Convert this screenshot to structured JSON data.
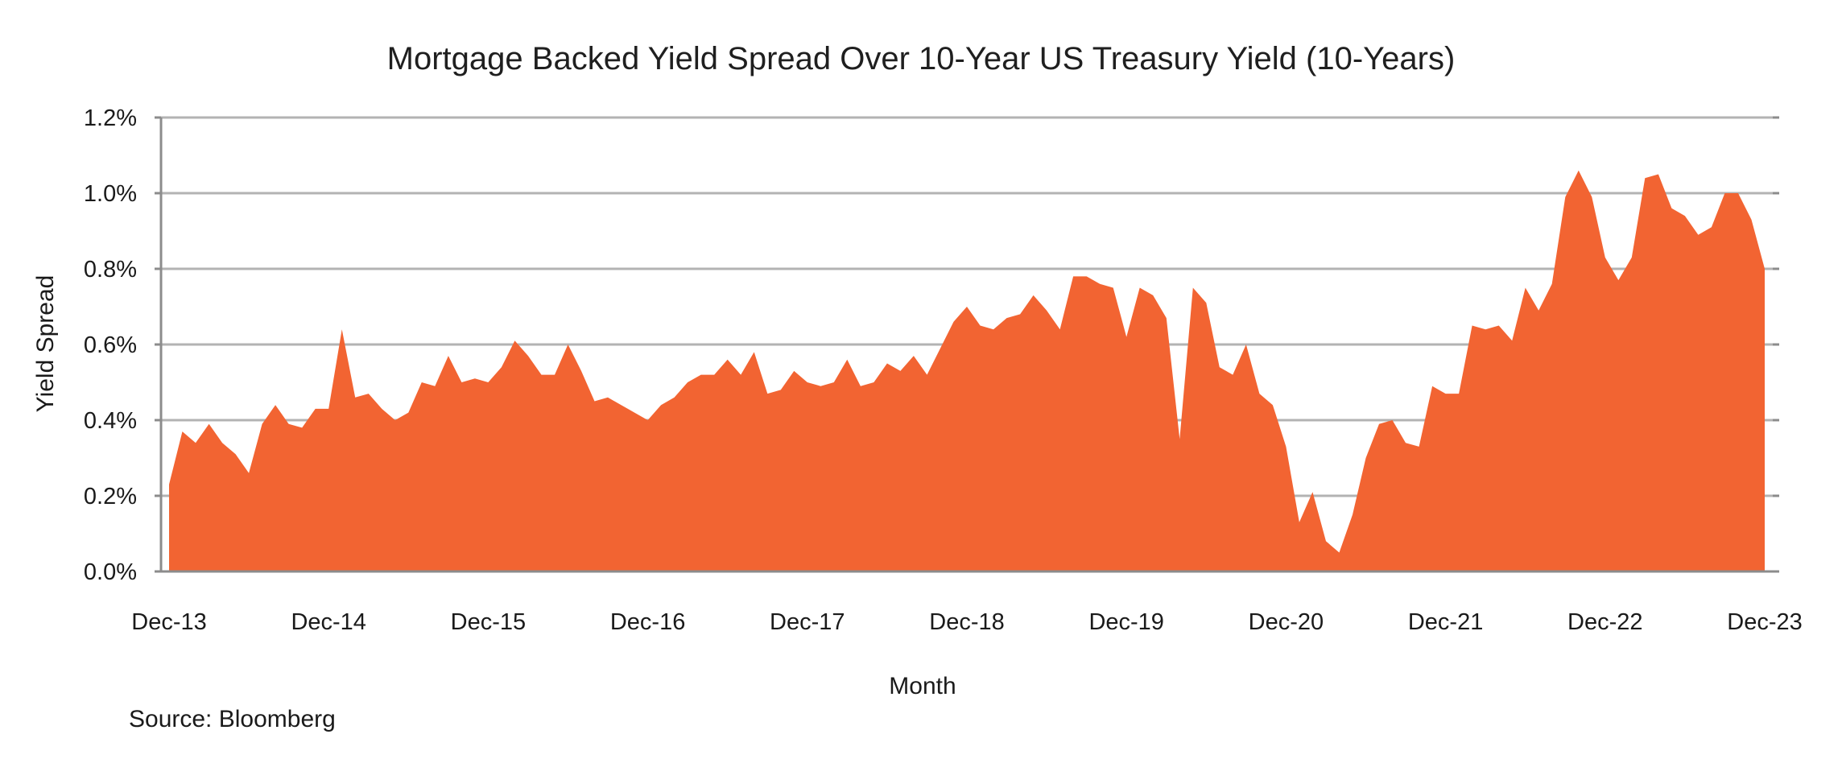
{
  "chart_data": {
    "type": "area",
    "title": "Mortgage Backed Yield Spread Over 10-Year US Treasury Yield (10-Years)",
    "xlabel": "Month",
    "ylabel": "Yield Spread",
    "x_tick_labels": [
      "Dec-13",
      "Dec-14",
      "Dec-15",
      "Dec-16",
      "Dec-17",
      "Dec-18",
      "Dec-19",
      "Dec-20",
      "Dec-21",
      "Dec-22",
      "Dec-23"
    ],
    "y_tick_labels": [
      "0.0%",
      "0.2%",
      "0.4%",
      "0.6%",
      "0.8%",
      "1.0%",
      "1.2%"
    ],
    "ylim": [
      0,
      1.2
    ],
    "y_unit": "%",
    "grid": true,
    "color": "#F26432",
    "series": [
      {
        "values": [
          0.23,
          0.37,
          0.34,
          0.39,
          0.34,
          0.31,
          0.26,
          0.39,
          0.44,
          0.39,
          0.38,
          0.43,
          0.43,
          0.64,
          0.46,
          0.47,
          0.43,
          0.4,
          0.42,
          0.5,
          0.49,
          0.57,
          0.5,
          0.51,
          0.5,
          0.54,
          0.61,
          0.57,
          0.52,
          0.52,
          0.6,
          0.53,
          0.45,
          0.46,
          0.44,
          0.42,
          0.4,
          0.44,
          0.46,
          0.5,
          0.52,
          0.52,
          0.56,
          0.52,
          0.58,
          0.47,
          0.48,
          0.53,
          0.5,
          0.49,
          0.5,
          0.56,
          0.49,
          0.5,
          0.55,
          0.53,
          0.57,
          0.52,
          0.59,
          0.66,
          0.7,
          0.65,
          0.64,
          0.67,
          0.68,
          0.73,
          0.69,
          0.64,
          0.78,
          0.78,
          0.76,
          0.75,
          0.62,
          0.75,
          0.73,
          0.67,
          0.35,
          0.75,
          0.71,
          0.54,
          0.52,
          0.6,
          0.47,
          0.44,
          0.33,
          0.13,
          0.21,
          0.08,
          0.05,
          0.15,
          0.3,
          0.39,
          0.4,
          0.34,
          0.33,
          0.49,
          0.47,
          0.47,
          0.65,
          0.64,
          0.65,
          0.61,
          0.75,
          0.69,
          0.76,
          0.99,
          1.06,
          0.99,
          0.83,
          0.77,
          0.83,
          1.04,
          1.05,
          0.96,
          0.94,
          0.89,
          0.91,
          1.0,
          1.0,
          0.93,
          0.8
        ]
      }
    ]
  },
  "source": "Source: Bloomberg"
}
